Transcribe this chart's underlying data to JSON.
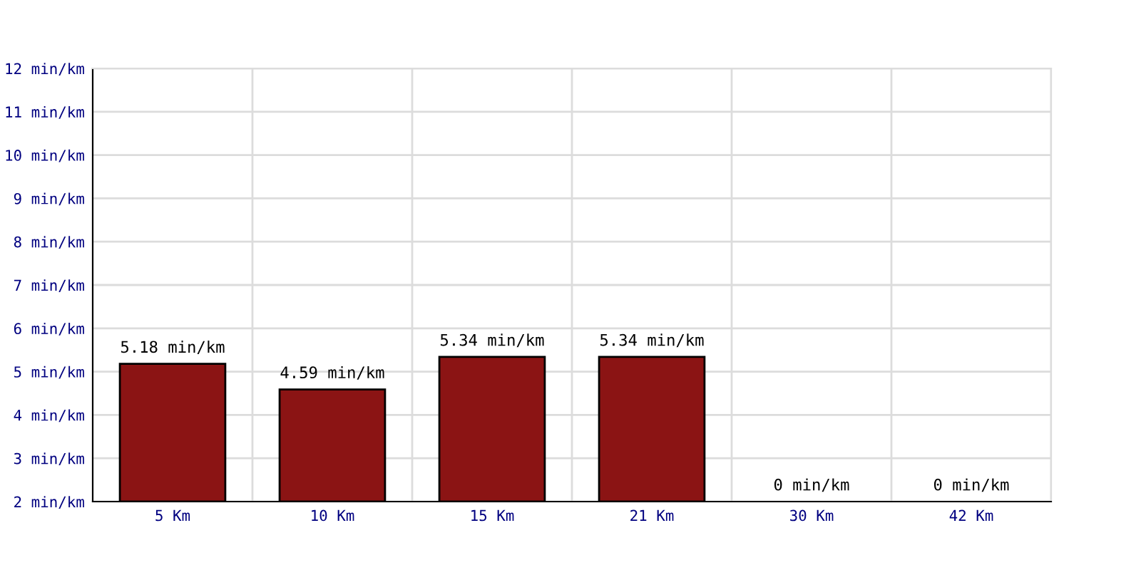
{
  "chart_data": {
    "type": "bar",
    "categories": [
      "5 Km",
      "10 Km",
      "15 Km",
      "21 Km",
      "30 Km",
      "42 Km"
    ],
    "values": [
      5.18,
      4.59,
      5.34,
      5.34,
      null,
      null
    ],
    "value_labels": [
      "5.18 min/km",
      "4.59 min/km",
      "5.34 min/km",
      "5.34 min/km",
      "0 min/km",
      "0 min/km"
    ],
    "color": "#8b1414",
    "ylim": [
      2,
      12
    ],
    "yticks": [
      {
        "value": 2,
        "label": "2 min/km"
      },
      {
        "value": 3,
        "label": "3 min/km"
      },
      {
        "value": 4,
        "label": "4 min/km"
      },
      {
        "value": 5,
        "label": "5 min/km"
      },
      {
        "value": 6,
        "label": "6 min/km"
      },
      {
        "value": 7,
        "label": "7 min/km"
      },
      {
        "value": 8,
        "label": "8 min/km"
      },
      {
        "value": 9,
        "label": "9 min/km"
      },
      {
        "value": 10,
        "label": "10 min/km"
      },
      {
        "value": 11,
        "label": "11 min/km"
      },
      {
        "value": 12,
        "label": "12 min/km"
      }
    ],
    "grid": true
  }
}
